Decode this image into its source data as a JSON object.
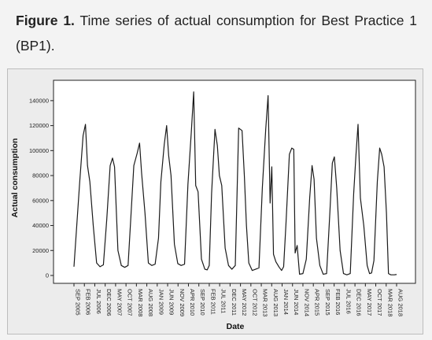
{
  "caption": {
    "figure_label": "Figure 1.",
    "text": "Time series of actual consumption for Best Practice 1 (BP1)."
  },
  "colors": {
    "line": "#1a1a1a",
    "background": "#f3f3f3",
    "plot_bg": "#ffffff"
  },
  "chart_data": {
    "type": "line",
    "xlabel": "Date",
    "ylabel": "Actual consumption",
    "ylim": [
      0,
      150000
    ],
    "yticks": [
      0,
      20000,
      40000,
      60000,
      80000,
      100000,
      120000,
      140000
    ],
    "grid": false,
    "x_tick_labels": [
      "SEP 2005",
      "FEB 2006",
      "JUL 2006",
      "DEC 2006",
      "MAY 2007",
      "OCT 2007",
      "MAR 2008",
      "AUG 2008",
      "JAN 2009",
      "JUN 2009",
      "NOV 2009",
      "APR 2010",
      "SEP 2010",
      "FEB 2011",
      "JUL 2011",
      "DEC 2011",
      "MAY 2012",
      "OCT 2012",
      "MAR 2013",
      "AUG 2013",
      "JAN 2014",
      "JUN 2014",
      "NOV 2014",
      "APR 2015",
      "SEP 2015",
      "FEB 2016",
      "JUL 2016",
      "DEC 2016",
      "MAY 2017",
      "OCT 2017",
      "MAR 2018",
      "AUG 2018"
    ],
    "series": [
      {
        "values": [
          [
            0,
            7000
          ],
          [
            1.7,
            75000
          ],
          [
            2.7,
            112000
          ],
          [
            3.4,
            121000
          ],
          [
            4,
            88000
          ],
          [
            4.7,
            75000
          ],
          [
            5.7,
            40000
          ],
          [
            6.7,
            10000
          ],
          [
            7.7,
            7000
          ],
          [
            8.7,
            8500
          ],
          [
            9.7,
            45000
          ],
          [
            10.7,
            88000
          ],
          [
            11.4,
            94000
          ],
          [
            12,
            87000
          ],
          [
            13,
            20000
          ],
          [
            14,
            8000
          ],
          [
            15,
            6500
          ],
          [
            16,
            8000
          ],
          [
            17,
            55000
          ],
          [
            17.7,
            88000
          ],
          [
            18.7,
            98000
          ],
          [
            19.4,
            106000
          ],
          [
            20,
            82000
          ],
          [
            21,
            50000
          ],
          [
            22,
            10000
          ],
          [
            23,
            8000
          ],
          [
            24,
            9000
          ],
          [
            25,
            30000
          ],
          [
            25.7,
            75000
          ],
          [
            26.7,
            105000
          ],
          [
            27.4,
            120000
          ],
          [
            28,
            96000
          ],
          [
            28.7,
            80000
          ],
          [
            29.7,
            25000
          ],
          [
            30.7,
            9500
          ],
          [
            31.7,
            8000
          ],
          [
            32.7,
            9000
          ],
          [
            33.7,
            73000
          ],
          [
            34.7,
            115000
          ],
          [
            35.4,
            147000
          ],
          [
            36,
            72000
          ],
          [
            36.7,
            67000
          ],
          [
            37.7,
            13000
          ],
          [
            38.7,
            5000
          ],
          [
            39.4,
            4500
          ],
          [
            40,
            8000
          ],
          [
            40.7,
            66000
          ],
          [
            41.7,
            117000
          ],
          [
            42.4,
            104000
          ],
          [
            43,
            80000
          ],
          [
            43.7,
            72000
          ],
          [
            44.7,
            22000
          ],
          [
            45.7,
            8000
          ],
          [
            46.7,
            5000
          ],
          [
            47.7,
            8000
          ],
          [
            48.7,
            118000
          ],
          [
            49.7,
            116000
          ],
          [
            50.4,
            79000
          ],
          [
            51,
            40000
          ],
          [
            51.7,
            10000
          ],
          [
            52.7,
            4000
          ],
          [
            53.7,
            5000
          ],
          [
            54.7,
            6000
          ],
          [
            55.7,
            70000
          ],
          [
            56.7,
            117000
          ],
          [
            57.4,
            144000
          ],
          [
            58,
            58000
          ],
          [
            58.5,
            87000
          ],
          [
            59,
            17000
          ],
          [
            59.7,
            11000
          ],
          [
            60.7,
            6500
          ],
          [
            61.4,
            4000
          ],
          [
            62,
            7000
          ],
          [
            62.7,
            42000
          ],
          [
            63.7,
            97000
          ],
          [
            64.4,
            102000
          ],
          [
            65,
            101000
          ],
          [
            65.4,
            18000
          ],
          [
            66,
            24000
          ],
          [
            66.7,
            1000
          ],
          [
            67.7,
            1500
          ],
          [
            68.7,
            13000
          ],
          [
            69.7,
            62000
          ],
          [
            70.4,
            88000
          ],
          [
            71,
            77000
          ],
          [
            71.7,
            30000
          ],
          [
            72.7,
            8000
          ],
          [
            73.7,
            1000
          ],
          [
            74.7,
            1500
          ],
          [
            75.7,
            52000
          ],
          [
            76.4,
            90000
          ],
          [
            77,
            95000
          ],
          [
            77.7,
            70000
          ],
          [
            78.7,
            20000
          ],
          [
            79.7,
            1500
          ],
          [
            80.7,
            500
          ],
          [
            81.7,
            1500
          ],
          [
            82.7,
            65000
          ],
          [
            83.4,
            97000
          ],
          [
            84,
            121000
          ],
          [
            84.7,
            62000
          ],
          [
            85.7,
            40000
          ],
          [
            86.7,
            8000
          ],
          [
            87.4,
            1500
          ],
          [
            88,
            2000
          ],
          [
            88.7,
            12000
          ],
          [
            89.7,
            75000
          ],
          [
            90.4,
            102000
          ],
          [
            91,
            97000
          ],
          [
            91.7,
            87000
          ],
          [
            92.4,
            50000
          ],
          [
            93,
            1500
          ],
          [
            93.7,
            500
          ],
          [
            94.7,
            500
          ],
          [
            95.4,
            800
          ]
        ]
      }
    ]
  }
}
